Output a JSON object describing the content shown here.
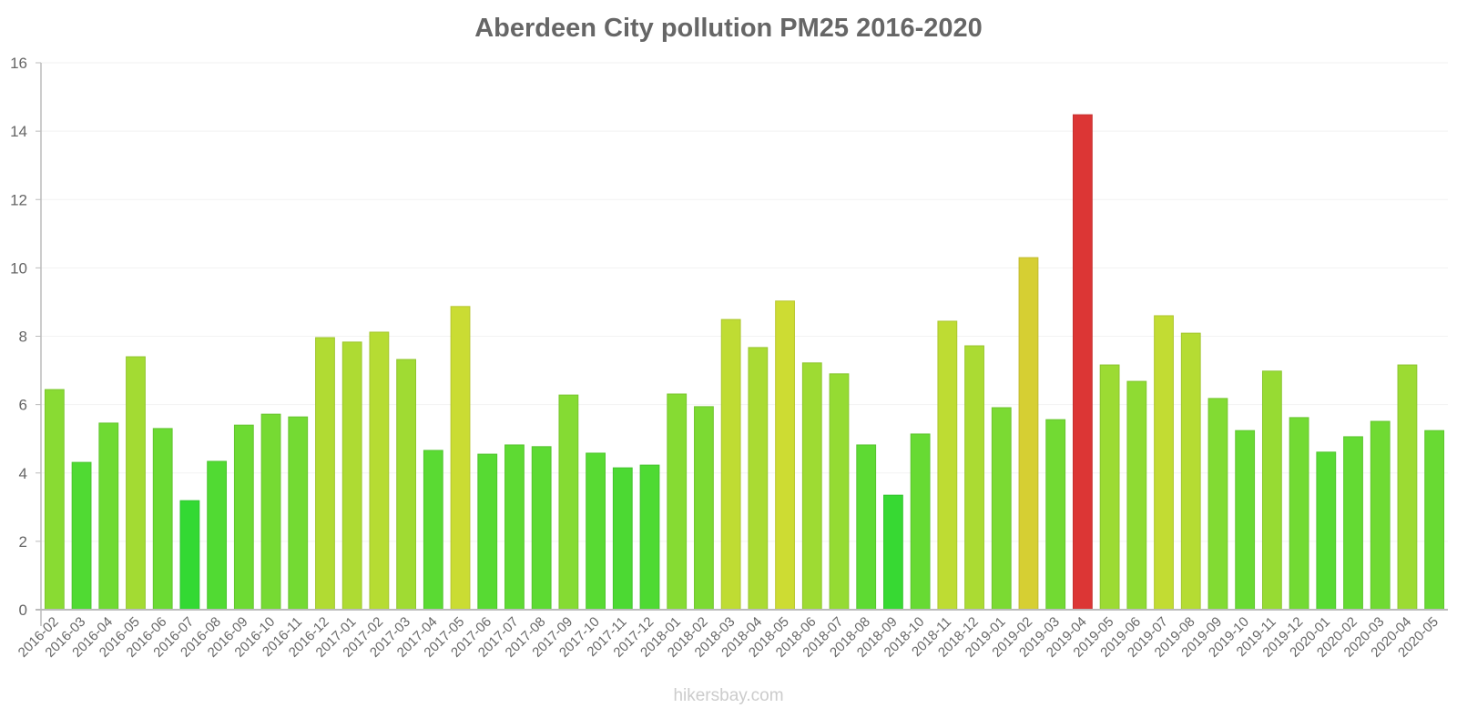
{
  "title": "Aberdeen City pollution PM25 2016-2020",
  "footer": "hikersbay.com",
  "chart_data": {
    "type": "bar",
    "title": "Aberdeen City pollution PM25 2016-2020",
    "xlabel": "",
    "ylabel": "",
    "ylim": [
      0,
      16
    ],
    "yticks": [
      0,
      2,
      4,
      6,
      8,
      10,
      12,
      14,
      16
    ],
    "grid": true,
    "legend": null,
    "categories": [
      "2016-02",
      "2016-03",
      "2016-04",
      "2016-05",
      "2016-06",
      "2016-07",
      "2016-08",
      "2016-09",
      "2016-10",
      "2016-11",
      "2016-12",
      "2017-01",
      "2017-02",
      "2017-03",
      "2017-04",
      "2017-05",
      "2017-06",
      "2017-07",
      "2017-08",
      "2017-09",
      "2017-10",
      "2017-11",
      "2017-12",
      "2018-01",
      "2018-02",
      "2018-03",
      "2018-04",
      "2018-05",
      "2018-06",
      "2018-07",
      "2018-08",
      "2018-09",
      "2018-10",
      "2018-11",
      "2018-12",
      "2019-01",
      "2019-02",
      "2019-03",
      "2019-04",
      "2019-05",
      "2019-06",
      "2019-07",
      "2019-08",
      "2019-09",
      "2019-10",
      "2019-11",
      "2019-12",
      "2020-01",
      "2020-02",
      "2020-03",
      "2020-04",
      "2020-05"
    ],
    "values": [
      6.44,
      4.31,
      5.46,
      7.4,
      5.3,
      3.19,
      4.34,
      5.4,
      5.72,
      5.64,
      7.96,
      7.83,
      8.12,
      7.32,
      4.66,
      8.87,
      4.55,
      4.82,
      4.77,
      6.28,
      4.58,
      4.15,
      4.23,
      6.31,
      5.94,
      8.49,
      7.67,
      9.03,
      7.22,
      6.9,
      4.82,
      3.35,
      5.14,
      8.44,
      7.72,
      5.91,
      10.3,
      5.56,
      14.48,
      7.16,
      6.68,
      8.6,
      8.09,
      6.18,
      5.24,
      6.98,
      5.62,
      4.61,
      5.06,
      5.51,
      7.16,
      5.24
    ],
    "color_scale": {
      "low": "#33d933",
      "mid": "#cddc33",
      "high_mid": "#dbc833",
      "high": "#dc3535"
    }
  }
}
